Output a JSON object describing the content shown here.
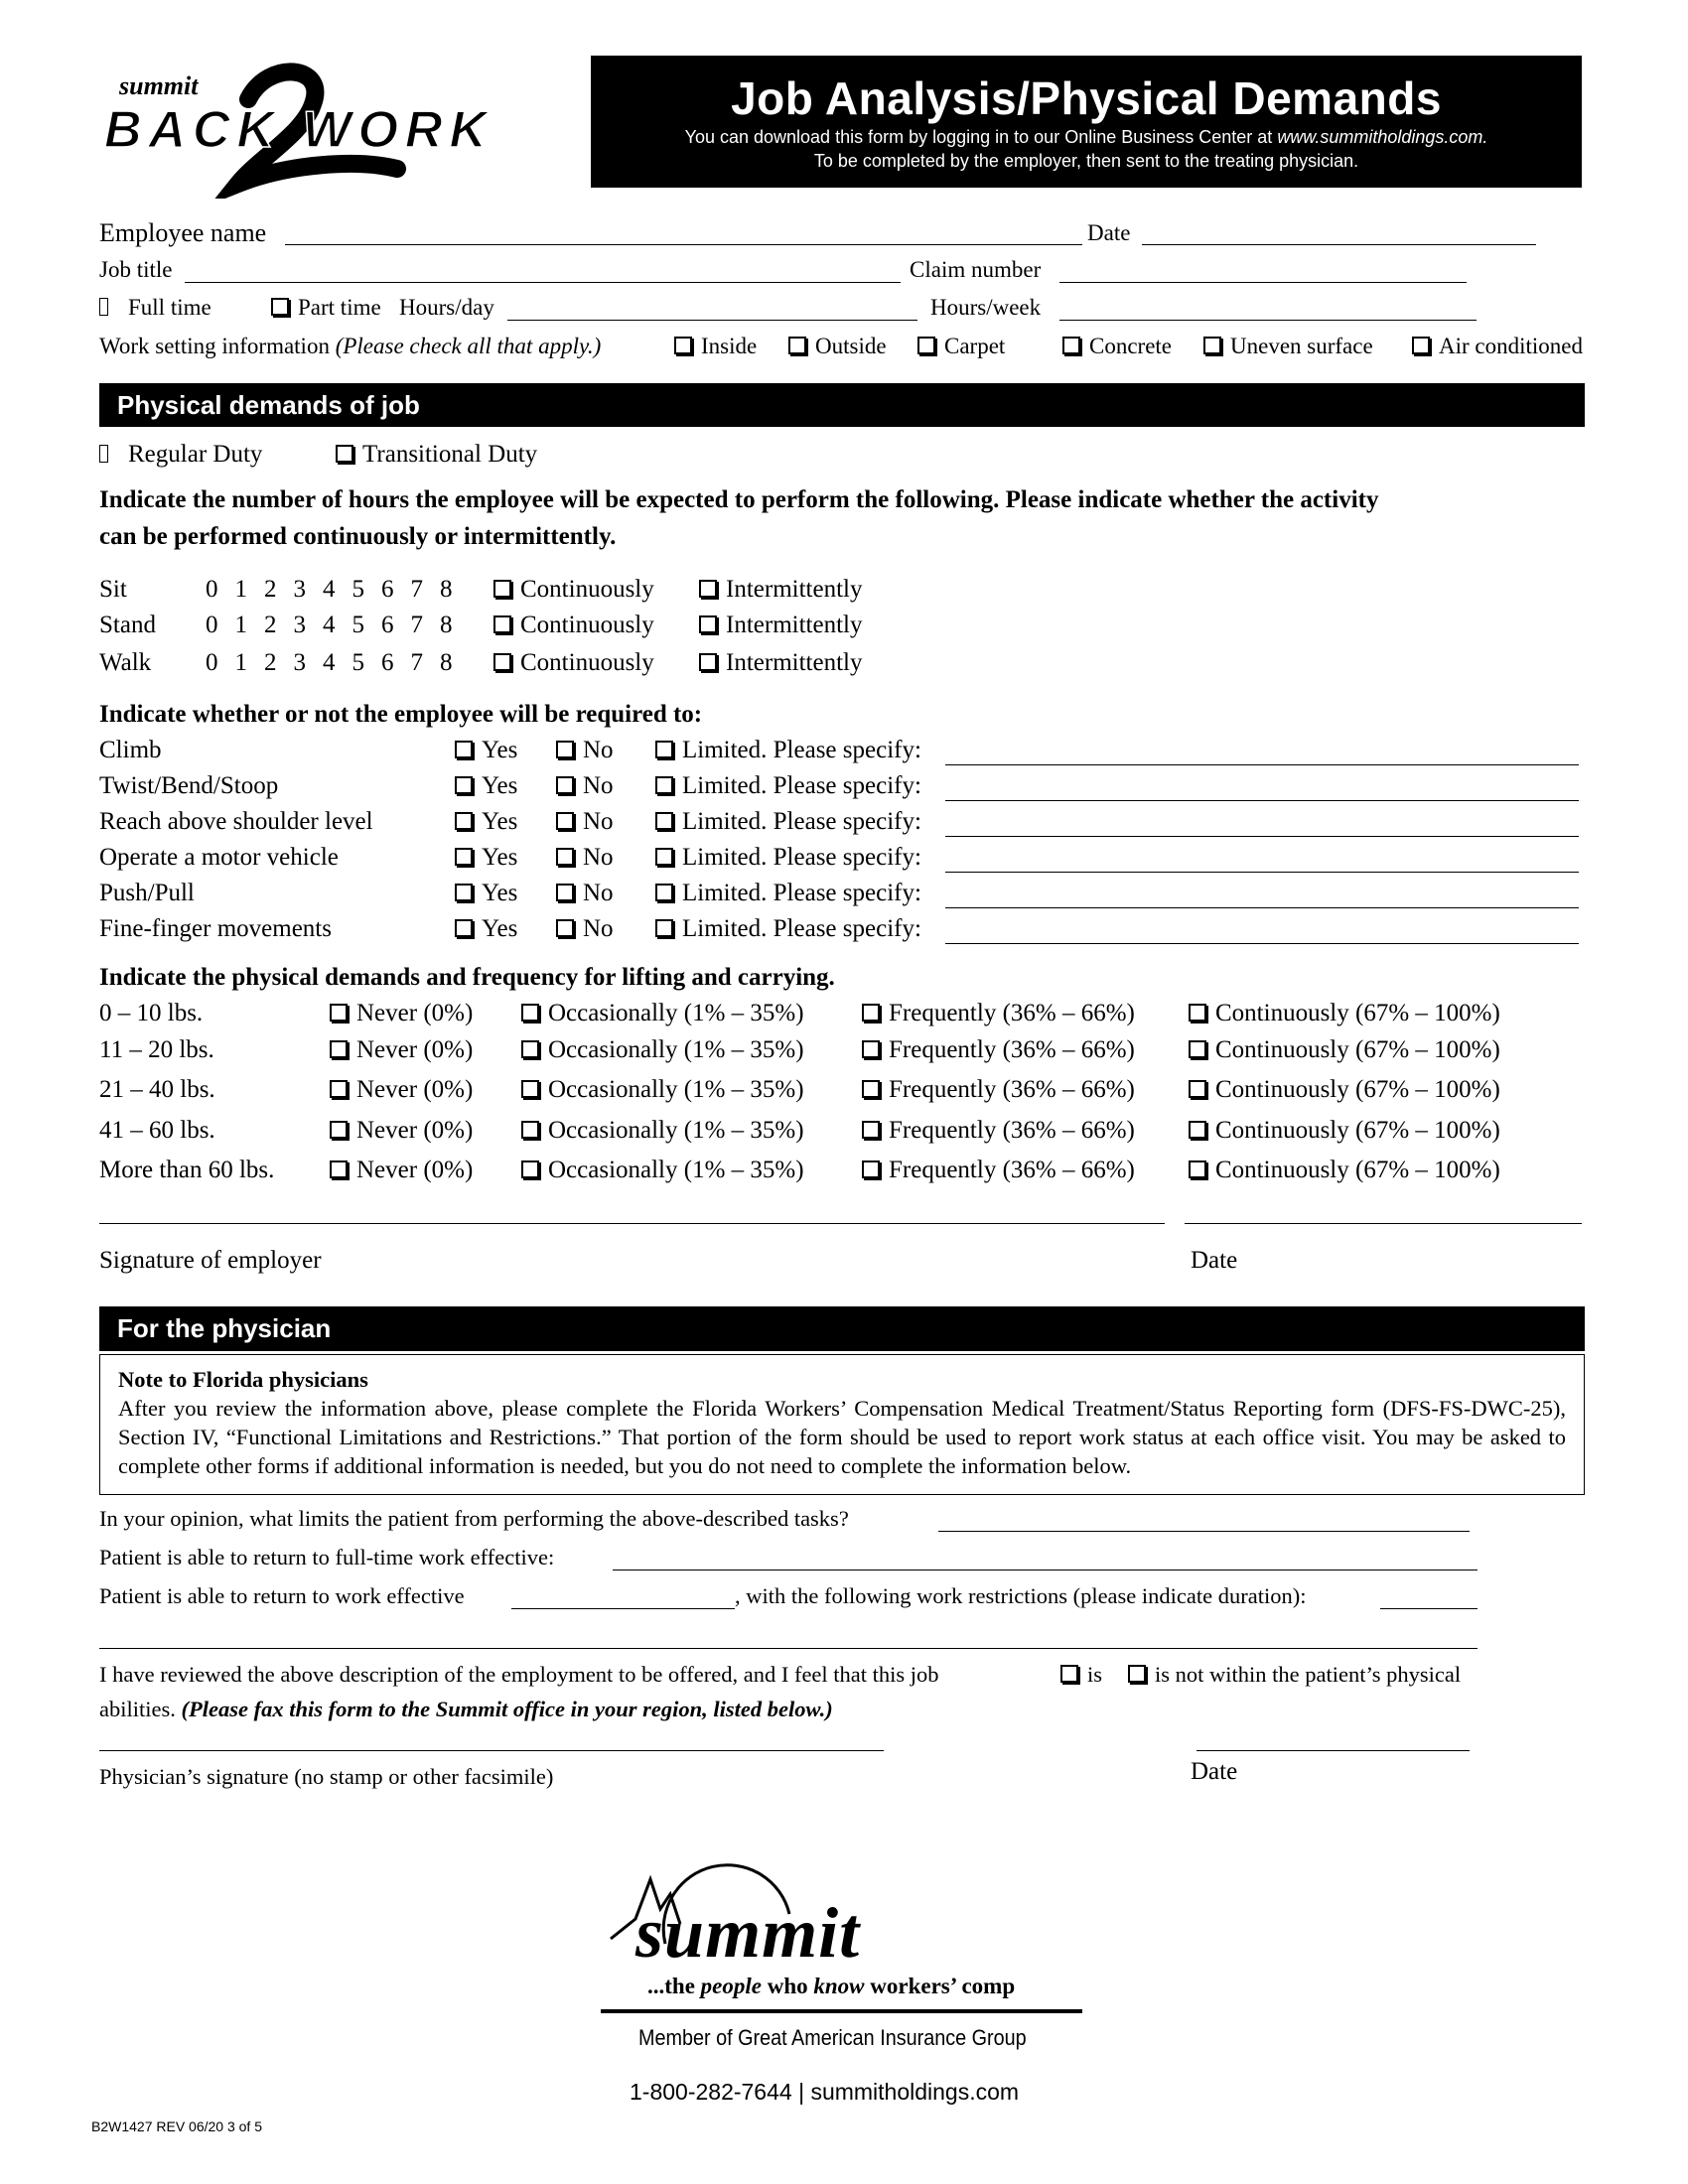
{
  "logo": {
    "text_small": "summit",
    "text_main": "BACK2WORK"
  },
  "header": {
    "title": "Job Analysis/Physical Demands",
    "subtitle1": "You can download this form by logging in to our Online Business Center at ",
    "subtitle1_url": "www.summitholdings.com.",
    "subtitle2": "To be completed by the employer, then sent to the treating physician."
  },
  "employee": {
    "employee_name_label": "Employee name",
    "date_label": "Date",
    "job_title_label": "Job title",
    "claim_number_label": "Claim number",
    "full_time_label": "Full time",
    "part_time_label": "Part time",
    "hours_day_label": "Hours/day",
    "hours_week_label": "Hours/week",
    "work_setting_label": "Work setting information ",
    "work_setting_hint": "(Please check all that apply.)",
    "settings": [
      "Inside",
      "Outside",
      "Carpet",
      "Concrete",
      "Uneven surface",
      "Air conditioned"
    ]
  },
  "physical": {
    "section_title": "Physical demands of job",
    "regular_duty": "Regular Duty",
    "transitional_duty": "Transitional Duty",
    "instructions_line1": "Indicate the number of hours the employee will be expected to perform the following. Please indicate whether the activity",
    "instructions_line2": "can be performed continuously or intermittently.",
    "hours": [
      "0",
      "1",
      "2",
      "3",
      "4",
      "5",
      "6",
      "7",
      "8"
    ],
    "continuously": "Continuously",
    "intermittently": "Intermittently",
    "activities": [
      "Sit",
      "Stand",
      "Walk"
    ],
    "required_heading": "Indicate whether or not the employee will be required to:",
    "yes": "Yes",
    "no": "No",
    "limited": "Limited. Please specify:",
    "required_items": [
      "Climb",
      "Twist/Bend/Stoop",
      "Reach above shoulder level",
      "Operate a motor vehicle",
      "Push/Pull",
      "Fine-finger movements"
    ],
    "lifting_heading": "Indicate the physical demands and frequency for lifting and carrying.",
    "lifting_weights": [
      "0 – 10 lbs.",
      "11 – 20 lbs.",
      "21 – 40 lbs.",
      "41 – 60 lbs.",
      "More than 60 lbs."
    ],
    "lifting_options": [
      "Never (0%)",
      "Occasionally (1% – 35%)",
      "Frequently (36% – 66%)",
      "Continuously (67% – 100%)"
    ],
    "signature_employer": "Signature of employer",
    "date_label": "Date"
  },
  "physician": {
    "section_title": "For the physician",
    "note_title": "Note to Florida physicians",
    "note_body": "After you review the information above, please complete the Florida Workers’ Compensation Medical Treatment/Status Reporting form (DFS-FS-DWC-25), Section IV, “Functional Limitations and Restrictions.” That portion of the form should be used to report work status at each office visit. You may be asked to complete other forms if additional information is needed, but you do not need to complete the information below.",
    "opinion_label": "In your opinion, what limits the patient from performing the above-described tasks?",
    "full_time_label": "Patient is able to return to full-time work effective:",
    "return_label": "Patient is able to return to work effective",
    "restrictions_label": ", with the following work restrictions (please indicate duration):",
    "reviewed_text": "I have reviewed the above description of the employment to be offered, and I feel that this job",
    "is_label": "is",
    "is_not_label": "is not within the patient’s physical",
    "abilities": "abilities. ",
    "fax_note": "(Please fax this form to the Summit office in your region, listed below.)",
    "signature_label": "Physician’s signature (no stamp or other facsimile)",
    "date_label": "Date"
  },
  "footer": {
    "brand": "summit",
    "tagline_pre": "...the ",
    "tagline_people": "people",
    "tagline_mid": " who ",
    "tagline_know": "know",
    "tagline_post": " workers’ comp",
    "member": "Member of Great American Insurance Group",
    "contact": "1-800-282-7644 | summitholdings.com",
    "form_code": "B2W1427 REV 06/20 3 of 5"
  }
}
